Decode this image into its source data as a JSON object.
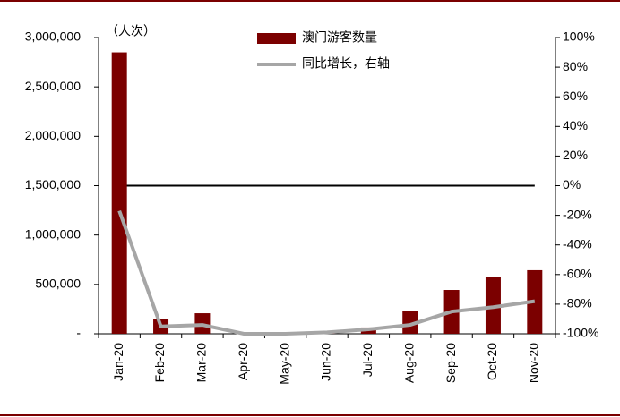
{
  "chart_data": {
    "type": "bar_line",
    "axis_label": "（人次）",
    "categories": [
      "Jan-20",
      "Feb-20",
      "Mar-20",
      "Apr-20",
      "May-20",
      "Jun-20",
      "Jul-20",
      "Aug-20",
      "Sep-20",
      "Oct-20",
      "Nov-20"
    ],
    "series": [
      {
        "name": "澳门游客数量",
        "type": "bar",
        "color": "#7b0000",
        "values": [
          2850000,
          154000,
          208000,
          11000,
          16000,
          23000,
          64000,
          227000,
          444000,
          580000,
          644000
        ]
      },
      {
        "name": "同比增长，右轴",
        "type": "line",
        "axis": "y2",
        "color": "#a6a6a6",
        "values": [
          -17,
          -95,
          -94,
          -100,
          -100,
          -99,
          -97,
          -94,
          -85,
          -82,
          -78
        ]
      }
    ],
    "ylim": [
      0,
      3000000
    ],
    "yticks": [
      {
        "value": 0,
        "label": "-"
      },
      {
        "value": 500000,
        "label": "500,000"
      },
      {
        "value": 1000000,
        "label": "1,000,000"
      },
      {
        "value": 1500000,
        "label": "1,500,000"
      },
      {
        "value": 2000000,
        "label": "2,000,000"
      },
      {
        "value": 2500000,
        "label": "2,500,000"
      },
      {
        "value": 3000000,
        "label": "3,000,000"
      }
    ],
    "y2lim": [
      -100,
      100
    ],
    "y2ticks": [
      {
        "value": -100,
        "label": "-100%"
      },
      {
        "value": -80,
        "label": "-80%"
      },
      {
        "value": -60,
        "label": "-60%"
      },
      {
        "value": -40,
        "label": "-40%"
      },
      {
        "value": -20,
        "label": "-20%"
      },
      {
        "value": 0,
        "label": "0%"
      },
      {
        "value": 20,
        "label": "20%"
      },
      {
        "value": 40,
        "label": "40%"
      },
      {
        "value": 60,
        "label": "60%"
      },
      {
        "value": 80,
        "label": "80%"
      },
      {
        "value": 100,
        "label": "100%"
      }
    ],
    "zero_line_y2": 0,
    "legend": "top"
  }
}
